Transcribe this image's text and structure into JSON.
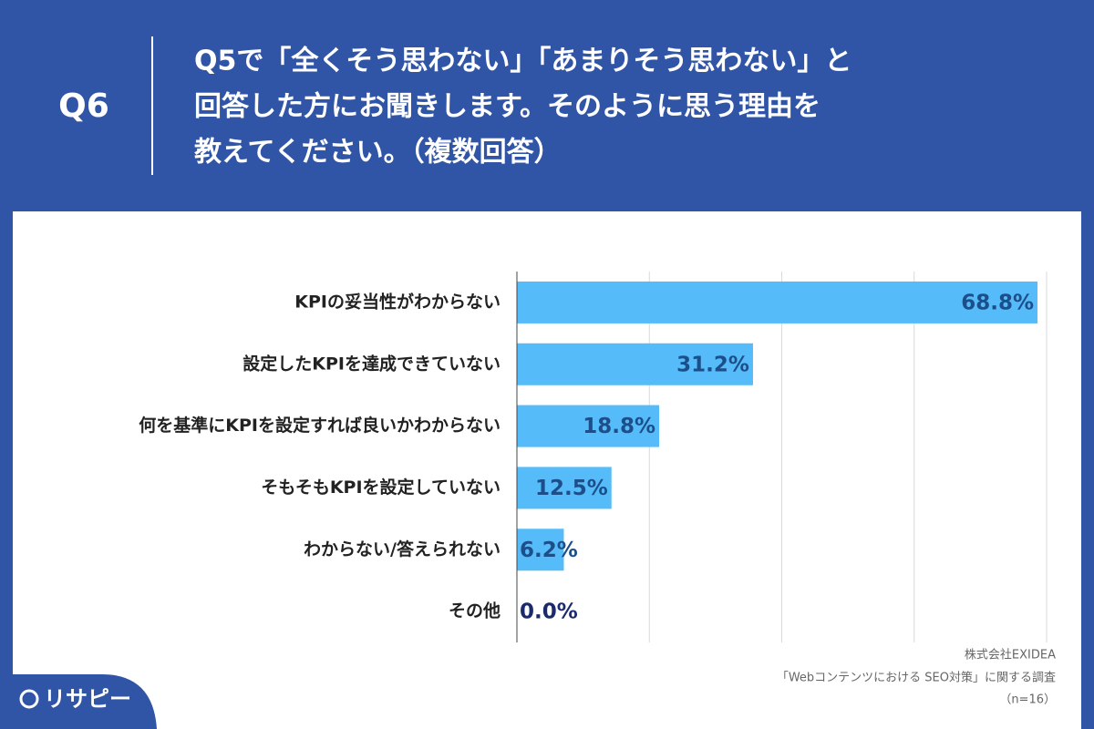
{
  "header": {
    "label": "Q6",
    "title_lines": [
      "Q5で「全くそう思わない」「あまりそう思わない」と",
      "回答した方にお聞きします。そのように思う理由を",
      "教えてください。（複数回答）"
    ]
  },
  "chart_data": {
    "type": "bar",
    "orientation": "horizontal",
    "categories": [
      "KPIの妥当性がわからない",
      "設定したKPIを達成できていない",
      "何を基準にKPIを設定すれば良いかわからない",
      "そもそもKPIを設定していない",
      "わからない/答えられない",
      "その他"
    ],
    "values": [
      68.8,
      31.2,
      18.8,
      12.5,
      6.2,
      0.0
    ],
    "value_labels": [
      "68.8%",
      "31.2%",
      "18.8%",
      "12.5%",
      "6.2%",
      "0.0%"
    ],
    "color": "#56bbf9",
    "xlim": [
      0,
      70
    ],
    "xticks": [
      0,
      17.5,
      35,
      52.5,
      70
    ],
    "grid": true
  },
  "source": [
    "株式会社EXIDEA",
    "「Webコンテンツにおける SEO対策」に関する調査",
    "（n=16）"
  ],
  "logo": "リサピー"
}
